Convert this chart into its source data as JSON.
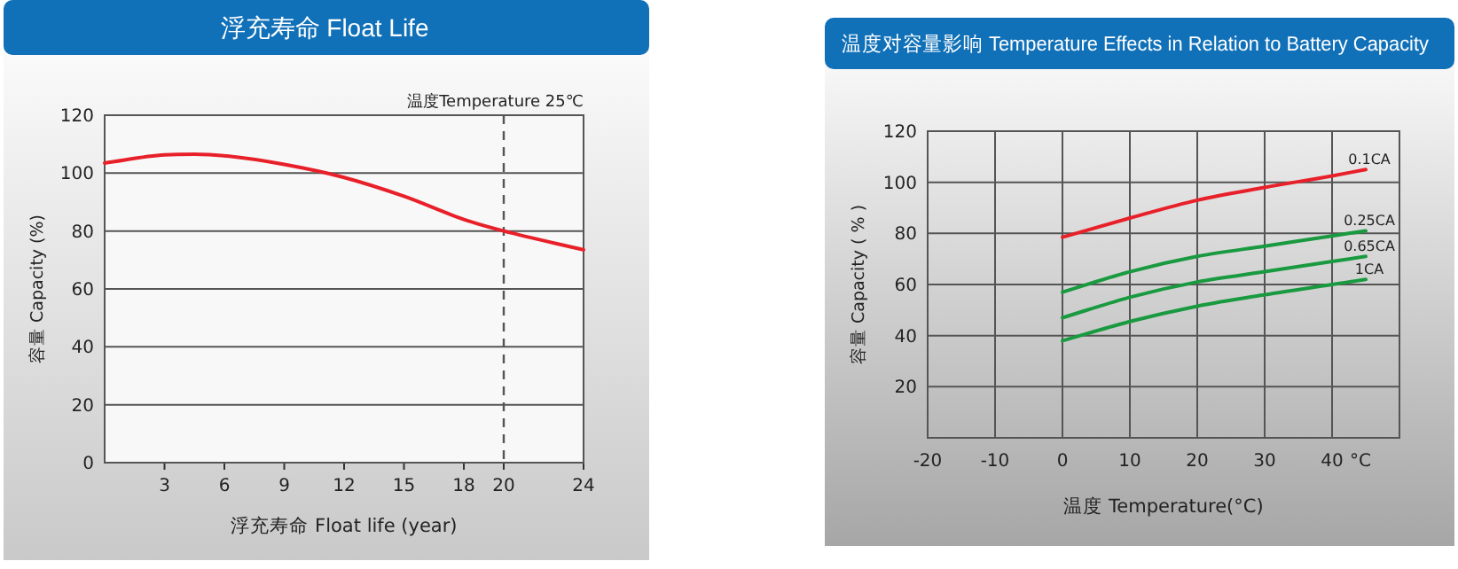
{
  "chart_data": [
    {
      "type": "line",
      "title": "浮充寿命 Float Life",
      "xlabel": "浮充寿命  Float life (year)",
      "ylabel": "容量  Capacity (%)",
      "xlim": [
        0,
        24
      ],
      "ylim": [
        0,
        120
      ],
      "xticks": [
        3,
        6,
        9,
        12,
        15,
        18,
        20,
        24
      ],
      "yticks": [
        0,
        20,
        40,
        60,
        80,
        100,
        120
      ],
      "grid": "y",
      "series": [
        {
          "color": "#e8202a",
          "x": [
            0,
            3,
            4.5,
            6,
            9,
            12,
            15,
            18,
            20,
            24
          ],
          "values": [
            103.5,
            106.3,
            106.5,
            106,
            103,
            98.5,
            92,
            84,
            80,
            73.5
          ]
        }
      ],
      "ref_lines": [
        {
          "axis": "x",
          "value": 20,
          "label": "温度Temperature 25℃",
          "color": "#555555",
          "line_style": "dashed"
        }
      ]
    },
    {
      "type": "line",
      "title": "温度对容量影响 Temperature Effects in Relation to Battery Capacity",
      "xlabel": "温度  Temperature(°C)",
      "ylabel": "容量 Capacity ( % )",
      "xlim": [
        -20,
        50
      ],
      "ylim": [
        0,
        120
      ],
      "xticks": [
        -20,
        -10,
        0,
        10,
        20,
        30,
        40
      ],
      "yticks": [
        20,
        40,
        60,
        80,
        100,
        120
      ],
      "grid": true,
      "annotations": [
        "°C"
      ],
      "series": [
        {
          "name": "0.1CA",
          "color": "#e8202a",
          "x": [
            0,
            10,
            20,
            30,
            40,
            45
          ],
          "values": [
            78.5,
            86,
            93,
            98,
            102.5,
            105
          ]
        },
        {
          "name": "0.25CA",
          "color": "#1a9a40",
          "x": [
            0,
            10,
            20,
            30,
            40,
            45
          ],
          "values": [
            57,
            65,
            71,
            75,
            79,
            81
          ]
        },
        {
          "name": "0.65CA",
          "color": "#1a9a40",
          "x": [
            0,
            10,
            20,
            30,
            40,
            45
          ],
          "values": [
            47,
            55,
            61,
            65,
            69,
            71
          ]
        },
        {
          "name": "1CA",
          "color": "#1a9a40",
          "x": [
            0,
            10,
            20,
            30,
            40,
            45
          ],
          "values": [
            38,
            45.5,
            51.5,
            56,
            60,
            62
          ]
        }
      ]
    }
  ]
}
